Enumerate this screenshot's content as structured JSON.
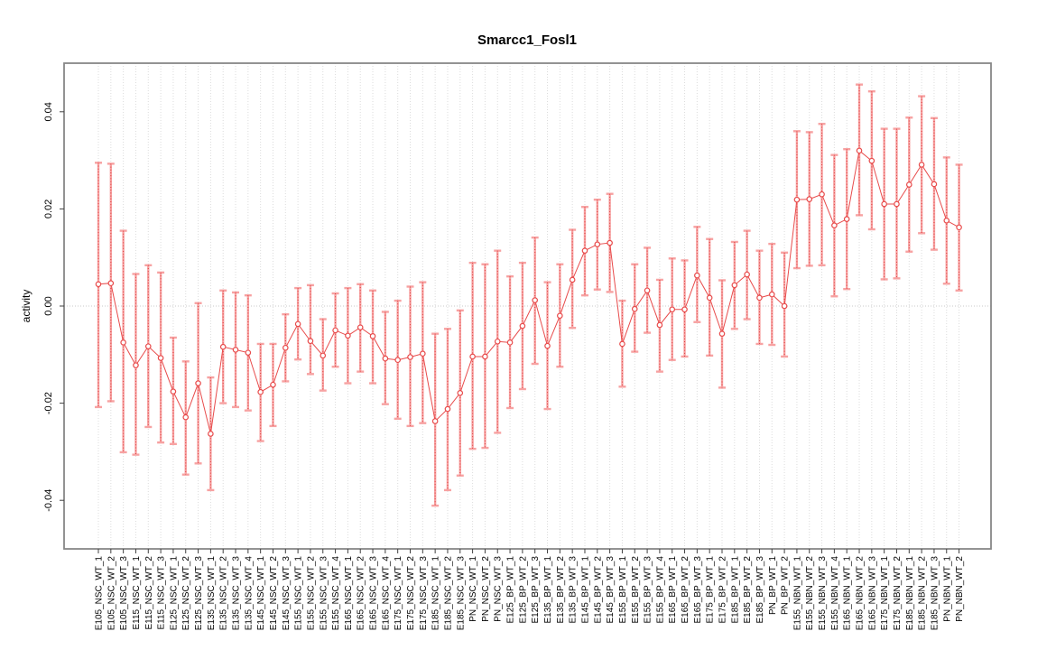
{
  "chart_data": {
    "type": "scatter",
    "title": "Smarcc1_Fosl1",
    "xlabel": "",
    "ylabel": "activity",
    "ylim": [
      -0.05,
      0.05
    ],
    "yticks": [
      -0.04,
      -0.02,
      0,
      0.02,
      0.04
    ],
    "ytick_labels": [
      "-0.04",
      "-0.02",
      "0.00",
      "0.02",
      "0.04"
    ],
    "grid": "vertical dotted gridline at every category; dotted horizontal line at y=0",
    "legend_position": "none",
    "point_style": "open circles with error bars, connected by thin line",
    "colors": {
      "point_line": "#e84b4b",
      "error_bar": "#f7a2a2",
      "error_bar_dotted": "#dd3c3c",
      "gridline": "#dcdcdc",
      "zero_line": "#c9c9c9",
      "border": "#878787"
    },
    "categories": [
      "E105_NSC_WT_1",
      "E105_NSC_WT_2",
      "E105_NSC_WT_3",
      "E115_NSC_WT_1",
      "E115_NSC_WT_2",
      "E115_NSC_WT_3",
      "E125_NSC_WT_1",
      "E125_NSC_WT_2",
      "E125_NSC_WT_3",
      "E135_NSC_WT_1",
      "E135_NSC_WT_2",
      "E135_NSC_WT_3",
      "E135_NSC_WT_4",
      "E145_NSC_WT_1",
      "E145_NSC_WT_2",
      "E145_NSC_WT_3",
      "E155_NSC_WT_1",
      "E155_NSC_WT_2",
      "E155_NSC_WT_3",
      "E155_NSC_WT_4",
      "E165_NSC_WT_1",
      "E165_NSC_WT_2",
      "E165_NSC_WT_3",
      "E165_NSC_WT_4",
      "E175_NSC_WT_1",
      "E175_NSC_WT_2",
      "E175_NSC_WT_3",
      "E185_NSC_WT_1",
      "E185_NSC_WT_2",
      "E185_NSC_WT_3",
      "PN_NSC_WT_1",
      "PN_NSC_WT_2",
      "PN_NSC_WT_3",
      "E125_BP_WT_1",
      "E125_BP_WT_2",
      "E125_BP_WT_3",
      "E135_BP_WT_1",
      "E135_BP_WT_2",
      "E135_BP_WT_3",
      "E145_BP_WT_1",
      "E145_BP_WT_2",
      "E145_BP_WT_3",
      "E155_BP_WT_1",
      "E155_BP_WT_2",
      "E155_BP_WT_3",
      "E155_BP_WT_4",
      "E165_BP_WT_1",
      "E165_BP_WT_2",
      "E165_BP_WT_3",
      "E175_BP_WT_1",
      "E175_BP_WT_2",
      "E185_BP_WT_1",
      "E185_BP_WT_2",
      "E185_BP_WT_3",
      "PN_BP_WT_1",
      "PN_BP_WT_2",
      "E155_NBN_WT_1",
      "E155_NBN_WT_2",
      "E155_NBN_WT_3",
      "E155_NBN_WT_4",
      "E165_NBN_WT_1",
      "E165_NBN_WT_2",
      "E165_NBN_WT_3",
      "E175_NBN_WT_1",
      "E175_NBN_WT_2",
      "E185_NBN_WT_1",
      "E185_NBN_WT_2",
      "E185_NBN_WT_3",
      "PN_NBN_WT_1",
      "PN_NBN_WT_2"
    ],
    "series": [
      {
        "name": "mean",
        "values": [
          0.0045,
          0.0047,
          -0.0075,
          -0.0122,
          -0.0083,
          -0.0107,
          -0.0176,
          -0.0229,
          -0.0159,
          -0.0263,
          -0.0084,
          -0.009,
          -0.0096,
          -0.0177,
          -0.0162,
          -0.0086,
          -0.0037,
          -0.0072,
          -0.0102,
          -0.005,
          -0.0061,
          -0.0044,
          -0.0062,
          -0.0108,
          -0.0111,
          -0.0105,
          -0.0098,
          -0.0237,
          -0.0212,
          -0.0179,
          -0.0104,
          -0.0104,
          -0.0073,
          -0.0075,
          -0.0041,
          0.0012,
          -0.0082,
          -0.002,
          0.0054,
          0.0114,
          0.0127,
          0.013,
          -0.0078,
          -0.0006,
          0.0032,
          -0.0039,
          -0.0007,
          -0.0007,
          0.0063,
          0.0017,
          -0.0057,
          0.0043,
          0.0065,
          0.0017,
          0.0024,
          0.0,
          0.0219,
          0.022,
          0.023,
          0.0166,
          0.0179,
          0.032,
          0.0299,
          0.021,
          0.021,
          0.025,
          0.0291,
          0.0251,
          0.0176,
          0.0162
        ]
      },
      {
        "name": "upper",
        "values": [
          0.0295,
          0.0293,
          0.0155,
          0.0066,
          0.0084,
          0.0069,
          -0.0065,
          -0.0114,
          0.0006,
          -0.0147,
          0.0032,
          0.0028,
          0.0022,
          -0.0078,
          -0.0078,
          -0.0017,
          0.0037,
          0.0043,
          -0.0027,
          0.0026,
          0.0037,
          0.0045,
          0.0032,
          -0.0012,
          0.0011,
          0.004,
          0.0049,
          -0.0057,
          -0.0047,
          -0.0009,
          0.0089,
          0.0086,
          0.0114,
          0.0061,
          0.0089,
          0.0141,
          0.0049,
          0.0086,
          0.0157,
          0.0204,
          0.0219,
          0.0231,
          0.0011,
          0.0086,
          0.012,
          0.0054,
          0.0098,
          0.0094,
          0.0163,
          0.0138,
          0.0053,
          0.0132,
          0.0155,
          0.0114,
          0.0128,
          0.011,
          0.036,
          0.0358,
          0.0375,
          0.0311,
          0.0323,
          0.0456,
          0.0442,
          0.0365,
          0.0365,
          0.0388,
          0.0432,
          0.0387,
          0.0306,
          0.0291
        ]
      },
      {
        "name": "lower",
        "values": [
          -0.0208,
          -0.0196,
          -0.0301,
          -0.0306,
          -0.0249,
          -0.0281,
          -0.0284,
          -0.0347,
          -0.0324,
          -0.0379,
          -0.02,
          -0.0208,
          -0.0215,
          -0.0278,
          -0.0247,
          -0.0155,
          -0.011,
          -0.014,
          -0.0174,
          -0.0125,
          -0.0159,
          -0.0135,
          -0.0159,
          -0.0202,
          -0.0232,
          -0.0247,
          -0.0241,
          -0.0411,
          -0.0379,
          -0.0349,
          -0.0294,
          -0.0292,
          -0.0261,
          -0.021,
          -0.0171,
          -0.0119,
          -0.0212,
          -0.0125,
          -0.0045,
          0.0022,
          0.0034,
          0.0029,
          -0.0166,
          -0.0094,
          -0.0055,
          -0.0135,
          -0.0111,
          -0.0104,
          -0.0033,
          -0.0102,
          -0.0168,
          -0.0047,
          -0.0027,
          -0.0078,
          -0.008,
          -0.0104,
          0.0078,
          0.0083,
          0.0084,
          0.002,
          0.0035,
          0.0187,
          0.0158,
          0.0055,
          0.0057,
          0.0112,
          0.015,
          0.0116,
          0.0046,
          0.0032
        ]
      }
    ]
  }
}
